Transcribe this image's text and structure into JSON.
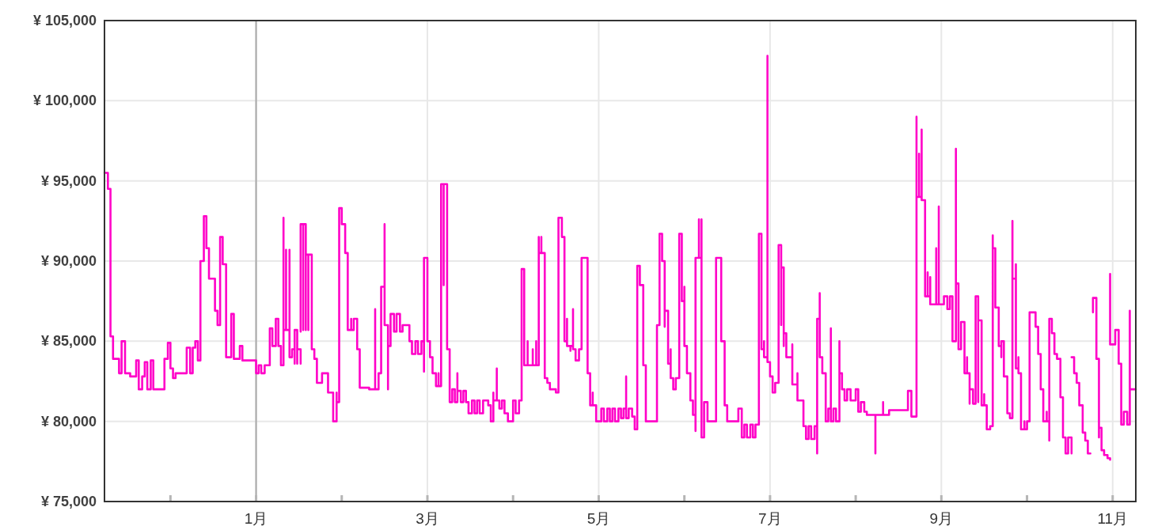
{
  "chart_data": {
    "type": "step",
    "color": "#ff00c8",
    "x": [
      -0.77,
      -0.73,
      -0.7,
      -0.67,
      -0.6,
      -0.57,
      -0.53,
      -0.47,
      -0.4,
      -0.37,
      -0.33,
      -0.3,
      -0.27,
      -0.23,
      -0.2,
      -0.07,
      -0.03,
      0,
      0.03,
      0.06,
      0.19,
      0.23,
      0.26,
      0.29,
      0.32,
      0.35,
      0.39,
      0.42,
      0.45,
      0.52,
      0.55,
      0.58,
      0.61,
      0.65,
      0.71,
      0.74,
      0.81,
      0.84,
      1,
      1.03,
      1.06,
      1.1,
      1.16,
      1.19,
      1.23,
      1.26,
      1.29,
      1.32,
      1.32,
      1.35,
      1.35,
      1.39,
      1.39,
      1.42,
      1.45,
      1.45,
      1.48,
      1.48,
      1.52,
      null,
      1.52,
      1.52,
      1.55,
      1.55,
      1.58,
      1.58,
      1.61,
      1.61,
      1.65,
      1.68,
      1.71,
      1.77,
      1.84,
      1.9,
      1.94,
      1.94,
      1.97,
      2,
      2.04,
      2.07,
      2.07,
      2.11,
      2.11,
      2.14,
      2.18,
      2.21,
      2.32,
      2.39,
      2.39,
      2.43,
      2.46,
      2.5,
      2.5,
      2.54,
      2.54,
      2.57,
      2.61,
      2.64,
      2.68,
      2.71,
      2.79,
      2.82,
      2.86,
      2.89,
      2.93,
      2.96,
      2.96,
      3,
      3.03,
      3.06,
      3.1,
      3.13,
      3.13,
      3.16,
      3.19,
      3.19,
      3.23,
      3.26,
      3.29,
      3.32,
      3.35,
      3.35,
      3.39,
      3.42,
      3.45,
      3.48,
      3.52,
      3.55,
      3.58,
      3.61,
      3.65,
      3.71,
      3.74,
      3.77,
      3.77,
      3.81,
      3.81,
      3.84,
      3.87,
      3.9,
      3.94,
      4,
      4.03,
      4.07,
      4.1,
      4.13,
      4.13,
      4.17,
      4.17,
      4.23,
      4.23,
      4.27,
      4.27,
      4.3,
      4.3,
      4.33,
      4.33,
      4.37,
      4.4,
      4.43,
      4.5,
      4.53,
      4.57,
      4.6,
      4.63,
      4.63,
      4.67,
      4.67,
      4.7,
      4.7,
      4.73,
      4.77,
      4.8,
      4.87,
      4.87,
      4.9,
      4.9,
      4.93,
      4.93,
      4.97,
      5.03,
      5.06,
      5.1,
      5.13,
      5.16,
      5.19,
      5.23,
      5.26,
      5.29,
      5.32,
      5.32,
      5.35,
      5.39,
      5.42,
      5.45,
      5.45,
      5.48,
      5.52,
      5.55,
      5.68,
      5.71,
      5.74,
      5.77,
      5.77,
      5.81,
      5.84,
      5.84,
      5.87,
      5.9,
      5.94,
      5.97,
      5.97,
      6,
      6,
      6.03,
      6.07,
      6.1,
      6.13,
      6.13,
      6.17,
      6.17,
      6.2,
      6.2,
      6.2,
      6.23,
      6.27,
      6.37,
      6.43,
      6.47,
      6.5,
      6.63,
      6.67,
      6.7,
      6.73,
      6.77,
      6.8,
      6.83,
      6.87,
      6.87,
      6.9,
      6.9,
      6.93,
      6.93,
      6.97,
      6.97,
      7,
      7.03,
      7.06,
      7.1,
      7.1,
      7.13,
      7.13,
      7.16,
      7.16,
      7.19,
      7.26,
      7.26,
      7.32,
      7.32,
      7.39,
      7.42,
      7.45,
      7.48,
      7.52,
      7.55,
      7.55,
      7.58,
      7.58,
      7.61,
      7.65,
      7.68,
      7.71,
      7.71,
      7.74,
      7.77,
      7.81,
      7.81,
      7.84,
      7.87,
      7.9,
      7.94,
      8,
      8.03,
      8.06,
      8.1,
      8.13,
      8.23,
      8.23,
      8.32,
      8.32,
      8.39,
      8.61,
      8.65,
      8.71,
      8.71,
      8.74,
      8.74,
      8.77,
      8.77,
      8.81,
      8.84,
      8.84,
      8.87,
      8.87,
      8.94,
      8.94,
      8.97,
      8.97,
      9.03,
      9.07,
      9.1,
      9.13,
      9.17,
      9.17,
      9.2,
      9.23,
      9.27,
      9.27,
      9.3,
      9.3,
      9.33,
      9.33,
      9.37,
      9.4,
      9.4,
      9.43,
      9.43,
      9.47,
      9.5,
      9.5,
      9.53,
      9.53,
      9.57,
      9.6,
      9.6,
      9.63,
      9.67,
      9.7,
      9.7,
      9.73,
      9.73,
      9.77,
      9.77,
      9.8,
      9.83,
      9.83,
      9.87,
      9.87,
      9.9,
      9.9,
      9.93,
      9.93,
      9.97,
      9.97,
      10,
      10.03,
      10.1,
      10.13,
      10.13,
      10.16,
      10.16,
      10.19,
      10.19,
      10.23,
      10.23,
      10.26,
      10.26,
      10.29,
      10.32,
      10.35,
      10.39,
      10.39,
      10.42,
      10.42,
      10.45,
      10.48,
      10.52,
      null,
      10.52,
      10.55,
      10.58,
      10.61,
      10.65,
      10.65,
      10.68,
      10.71,
      10.74,
      null,
      10.77,
      10.77,
      10.81,
      10.84,
      10.84,
      10.87,
      10.9,
      10.94,
      10.97,
      null,
      10.97,
      10.97,
      11.03,
      11.07,
      11.1,
      11.1,
      11.13,
      11.17,
      11.2,
      11.2,
      11.27
    ],
    "values": [
      95500,
      94500,
      85300,
      83900,
      83000,
      85000,
      83000,
      82800,
      83800,
      82000,
      82800,
      83700,
      82000,
      83800,
      82000,
      83900,
      84900,
      83300,
      82700,
      83000,
      84600,
      83000,
      84600,
      85000,
      83800,
      90000,
      92800,
      90800,
      88900,
      86900,
      86000,
      91500,
      89800,
      84000,
      86700,
      83900,
      84700,
      83800,
      83000,
      83500,
      83000,
      83500,
      85800,
      84700,
      86400,
      84700,
      83500,
      92700,
      85700,
      90700,
      85700,
      90700,
      84000,
      84500,
      83600,
      85700,
      83600,
      84500,
      83600,
      null,
      85600,
      92300,
      85700,
      92300,
      85700,
      90400,
      85700,
      90400,
      84500,
      83900,
      82400,
      83000,
      81800,
      80000,
      81800,
      81200,
      93300,
      92300,
      90500,
      86900,
      85700,
      86400,
      85700,
      86400,
      84500,
      82100,
      82000,
      87000,
      82000,
      83000,
      88400,
      92300,
      86000,
      82000,
      84700,
      86700,
      85600,
      86700,
      85600,
      86000,
      85000,
      84200,
      85000,
      84200,
      85000,
      83100,
      90200,
      85000,
      84000,
      83000,
      82200,
      83000,
      82200,
      94800,
      88500,
      94800,
      84500,
      81200,
      82000,
      81200,
      83000,
      81900,
      81200,
      81900,
      81200,
      80500,
      81300,
      80500,
      81300,
      80500,
      81300,
      81000,
      80000,
      81800,
      81300,
      83300,
      81300,
      80800,
      81300,
      80500,
      80000,
      81300,
      80500,
      81300,
      89500,
      86500,
      83500,
      85000,
      83500,
      84500,
      83500,
      85000,
      83500,
      91500,
      90500,
      91500,
      90500,
      82700,
      82400,
      82000,
      81800,
      92700,
      91500,
      85000,
      86400,
      84700,
      84400,
      84700,
      87000,
      84500,
      83800,
      84500,
      90200,
      84500,
      83000,
      82100,
      81000,
      81800,
      81000,
      80000,
      80800,
      80000,
      80800,
      80000,
      80800,
      80000,
      80800,
      80200,
      80800,
      82800,
      80200,
      80800,
      80300,
      79500,
      86300,
      89700,
      88500,
      83500,
      80000,
      86000,
      91700,
      90000,
      85900,
      86900,
      83600,
      84500,
      82700,
      82000,
      82700,
      91700,
      90000,
      87500,
      88400,
      84700,
      83000,
      81300,
      80400,
      79400,
      90200,
      92600,
      90200,
      92600,
      84000,
      79000,
      81200,
      80000,
      90200,
      85000,
      81000,
      80000,
      80800,
      79000,
      79800,
      79000,
      79800,
      79000,
      79800,
      90000,
      91700,
      85700,
      84500,
      85000,
      84000,
      102800,
      83700,
      82800,
      81800,
      82400,
      89700,
      91000,
      86000,
      89600,
      84700,
      85500,
      84000,
      84800,
      82300,
      83000,
      81300,
      79700,
      78900,
      79700,
      78900,
      79700,
      78000,
      86400,
      88000,
      84000,
      83000,
      80000,
      80800,
      85800,
      80000,
      80800,
      80000,
      85000,
      83000,
      82000,
      81300,
      82000,
      81300,
      82000,
      80600,
      81200,
      80600,
      80400,
      78000,
      80400,
      81200,
      80400,
      80700,
      81900,
      80300,
      99000,
      94000,
      96700,
      94000,
      98200,
      93800,
      87800,
      89300,
      87800,
      89000,
      87300,
      90800,
      87300,
      93400,
      87300,
      87800,
      87000,
      87800,
      85000,
      97000,
      88600,
      84500,
      86200,
      84700,
      83000,
      84000,
      83000,
      81100,
      82000,
      81100,
      86900,
      87800,
      81200,
      86300,
      81000,
      81700,
      81000,
      80000,
      79500,
      79700,
      91600,
      90800,
      87100,
      84700,
      84000,
      85000,
      84000,
      82800,
      81000,
      80500,
      80200,
      92500,
      88900,
      89800,
      83300,
      84000,
      83000,
      82000,
      79500,
      80000,
      79500,
      80000,
      86800,
      85900,
      84800,
      84200,
      83900,
      82000,
      80700,
      80000,
      80600,
      80000,
      78800,
      86400,
      85500,
      84200,
      83900,
      82300,
      81500,
      79900,
      79000,
      78000,
      79000,
      78000,
      null,
      84000,
      83000,
      82400,
      81000,
      79800,
      79300,
      78800,
      78000,
      78000,
      null,
      86800,
      87700,
      83900,
      79000,
      79600,
      78200,
      77900,
      77700,
      77600,
      null,
      89200,
      84800,
      85700,
      83600,
      81400,
      79800,
      80600,
      79800,
      86900,
      82000,
      82000
    ],
    "xlim": [
      -0.77,
      11.27
    ],
    "xticks": [
      {
        "value": 0,
        "label": null
      },
      {
        "value": 1,
        "label": "1月"
      },
      {
        "value": 2,
        "label": null
      },
      {
        "value": 3,
        "label": "3月"
      },
      {
        "value": 4,
        "label": null
      },
      {
        "value": 5,
        "label": "5月"
      },
      {
        "value": 6,
        "label": null
      },
      {
        "value": 7,
        "label": "7月"
      },
      {
        "value": 8,
        "label": null
      },
      {
        "value": 9,
        "label": "9月"
      },
      {
        "value": 10,
        "label": null
      },
      {
        "value": 11,
        "label": "11月"
      }
    ],
    "ylim": [
      75000,
      105000
    ],
    "yticks": [
      {
        "value": 75000,
        "label": "¥ 75,000"
      },
      {
        "value": 80000,
        "label": "¥ 80,000"
      },
      {
        "value": 85000,
        "label": "¥ 85,000"
      },
      {
        "value": 90000,
        "label": "¥ 90,000"
      },
      {
        "value": 95000,
        "label": "¥ 95,000"
      },
      {
        "value": 100000,
        "label": "¥ 100,000"
      },
      {
        "value": 105000,
        "label": "¥ 105,000"
      }
    ],
    "grid": true,
    "ref_lines": [
      {
        "axis": "x",
        "value": 1,
        "color": "#a8a8a8"
      }
    ]
  }
}
